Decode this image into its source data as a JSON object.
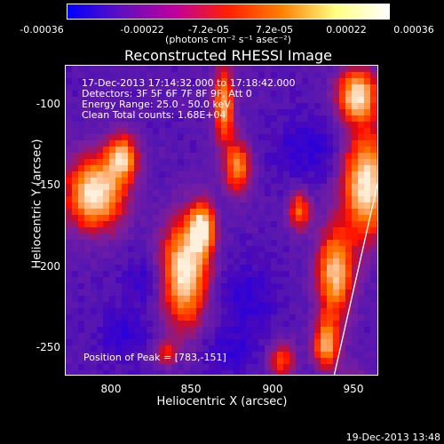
{
  "colorbar": {
    "ticks": [
      "-0.00036",
      "-0.00022",
      "-7.2e-05",
      "7.2e-05",
      "0.00022",
      "0.00036"
    ],
    "units": "(photons cm⁻² s⁻¹ asec⁻²)",
    "colors": [
      "#0000ff",
      "#6010c0",
      "#c000a0",
      "#ff2000",
      "#ff8000",
      "#ffff80",
      "#ffffff"
    ]
  },
  "plot": {
    "title": "Reconstructed RHESSI Image",
    "info_lines": [
      "17-Dec-2013 17:14:32.000 to 17:18:42.000",
      "Detectors: 3F 5F 6F 7F 8F 9F, Att 0",
      "Energy Range: 25.0 - 50.0 keV",
      "Clean     Total counts: 1.68E+04"
    ],
    "peak_label": "Position of Peak = [783,-151]",
    "xlabel": "Heliocentric X (arcsec)",
    "ylabel": "Heliocentric Y (arcsec)",
    "xticks": [
      "800",
      "850",
      "900",
      "950"
    ],
    "yticks": [
      "-100",
      "-150",
      "-200",
      "-250"
    ],
    "xlim": [
      771,
      966
    ],
    "ylim": [
      -270,
      -78
    ]
  },
  "footer": "19-Dec-2013 13:48"
}
